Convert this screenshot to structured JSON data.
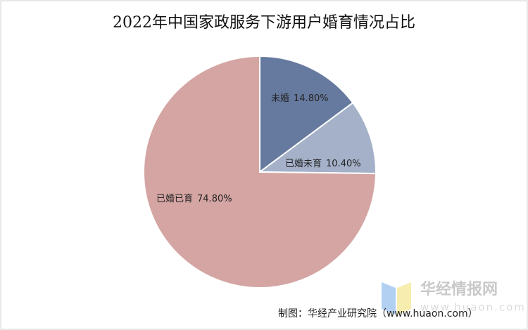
{
  "chart_data": {
    "type": "pie",
    "title": "2022年中国家政服务下游用户婚育情况占比",
    "categories": [
      "未婚",
      "已婚未育",
      "已婚已育"
    ],
    "values": [
      14.8,
      10.4,
      74.8
    ],
    "value_labels": [
      "14.80%",
      "10.40%",
      "74.80%"
    ],
    "colors": [
      "#667a9f",
      "#a4b1c8",
      "#d4a5a3"
    ],
    "source": "制图：华经产业研究院（www.huaon.com）",
    "watermark": {
      "name": "华经情报网",
      "url": "www.huaon.com"
    }
  }
}
